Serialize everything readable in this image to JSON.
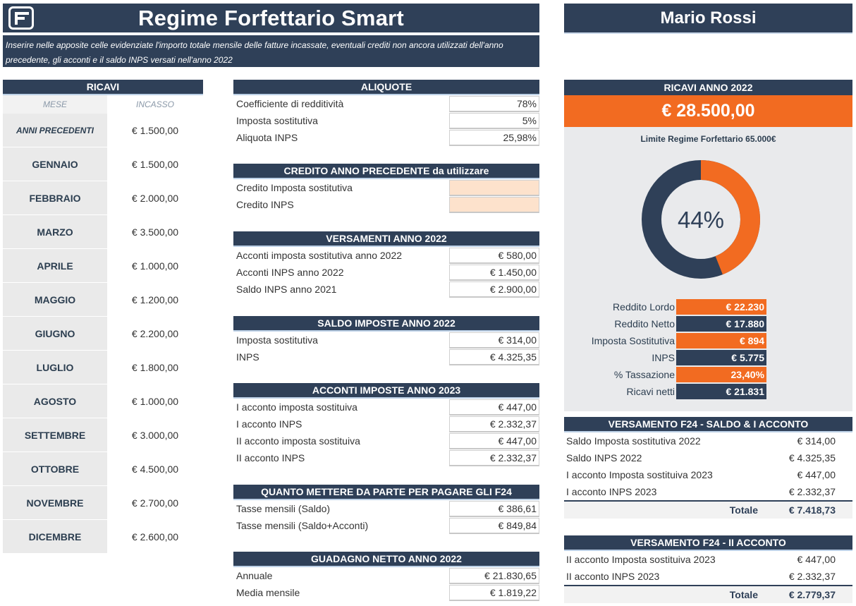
{
  "header": {
    "title": "Regime Forfettario Smart",
    "subtitle": "Inserire nelle apposite celle evidenziate l'importo totale mensile delle fatture incassate, eventuali crediti non ancora utilizzati dell'anno precedente, gli acconti e il saldo INPS versati nell'anno 2022",
    "user_name": "Mario Rossi",
    "logo_icon": "spreadsheet-logo-icon"
  },
  "colors": {
    "navy": "#2f4058",
    "orange": "#f26b21",
    "peach": "#fde2cc",
    "grey_panel": "#e9eaec"
  },
  "ricavi": {
    "title": "RICAVI",
    "col_month": "MESE",
    "col_amount": "INCASSO",
    "rows": [
      {
        "month": "ANNI PRECEDENTI",
        "amount": "€ 1.500,00"
      },
      {
        "month": "GENNAIO",
        "amount": "€ 1.500,00"
      },
      {
        "month": "FEBBRAIO",
        "amount": "€ 2.000,00"
      },
      {
        "month": "MARZO",
        "amount": "€ 3.500,00"
      },
      {
        "month": "APRILE",
        "amount": "€ 1.000,00"
      },
      {
        "month": "MAGGIO",
        "amount": "€ 1.200,00"
      },
      {
        "month": "GIUGNO",
        "amount": "€ 2.200,00"
      },
      {
        "month": "LUGLIO",
        "amount": "€ 1.800,00"
      },
      {
        "month": "AGOSTO",
        "amount": "€ 1.000,00"
      },
      {
        "month": "SETTEMBRE",
        "amount": "€ 3.000,00"
      },
      {
        "month": "OTTOBRE",
        "amount": "€ 4.500,00"
      },
      {
        "month": "NOVEMBRE",
        "amount": "€ 2.700,00"
      },
      {
        "month": "DICEMBRE",
        "amount": "€ 2.600,00"
      }
    ]
  },
  "aliquote": {
    "title": "ALIQUOTE",
    "rows": [
      {
        "label": "Coefficiente di redditività",
        "value": "78%"
      },
      {
        "label": "Imposta sostitutiva",
        "value": "5%"
      },
      {
        "label": "Aliquota INPS",
        "value": "25,98%"
      }
    ]
  },
  "credito": {
    "title": "CREDITO ANNO PRECEDENTE da utilizzare",
    "rows": [
      {
        "label": "Credito Imposta sostitutiva",
        "value": ""
      },
      {
        "label": "Credito INPS",
        "value": ""
      }
    ]
  },
  "versamenti": {
    "title": "VERSAMENTI ANNO 2022",
    "rows": [
      {
        "label": "Acconti imposta sostitutiva anno 2022",
        "value": "€ 580,00"
      },
      {
        "label": "Acconti INPS anno 2022",
        "value": "€ 1.450,00"
      },
      {
        "label": "Saldo INPS anno 2021",
        "value": "€ 2.900,00"
      }
    ]
  },
  "saldo": {
    "title": "SALDO IMPOSTE ANNO 2022",
    "rows": [
      {
        "label": "Imposta sostitutiva",
        "value": "€ 314,00"
      },
      {
        "label": "INPS",
        "value": "€ 4.325,35"
      }
    ]
  },
  "acconti": {
    "title": "ACCONTI IMPOSTE ANNO 2023",
    "rows": [
      {
        "label": "I acconto imposta sostituiva",
        "value": "€ 447,00"
      },
      {
        "label": "I acconto INPS",
        "value": "€ 2.332,37"
      },
      {
        "label": "II acconto imposta sostituiva",
        "value": "€ 447,00"
      },
      {
        "label": "II acconto INPS",
        "value": "€ 2.332,37"
      }
    ]
  },
  "quanto": {
    "title": "QUANTO METTERE DA PARTE PER PAGARE GLI F24",
    "rows": [
      {
        "label": "Tasse mensili (Saldo)",
        "value": "€ 386,61"
      },
      {
        "label": "Tasse mensili (Saldo+Acconti)",
        "value": "€ 849,84"
      }
    ]
  },
  "guadagno": {
    "title": "GUADAGNO NETTO ANNO 2022",
    "rows": [
      {
        "label": "Annuale",
        "value": "€ 21.830,65"
      },
      {
        "label": "Media mensile",
        "value": "€ 1.819,22"
      }
    ]
  },
  "summary": {
    "title": "RICAVI ANNO 2022",
    "total": "€ 28.500,00",
    "limit_label": "Limite Regime Forfettario 65.000€",
    "gauge_percent": 44,
    "gauge_label": "44%",
    "kpis": [
      {
        "label": "Reddito Lordo",
        "value": "€ 22.230",
        "color": "orange"
      },
      {
        "label": "Reddito Netto",
        "value": "€ 17.880",
        "color": "navy"
      },
      {
        "label": "Imposta Sostitutiva",
        "value": "€ 894",
        "color": "orange"
      },
      {
        "label": "INPS",
        "value": "€ 5.775",
        "color": "navy"
      },
      {
        "label": "% Tassazione",
        "value": "23,40%",
        "color": "orange"
      },
      {
        "label": "Ricavi netti",
        "value": "€ 21.831",
        "color": "navy"
      }
    ]
  },
  "f24_saldo": {
    "title": "VERSAMENTO F24 - SALDO & I ACCONTO",
    "rows": [
      {
        "label": "Saldo Imposta sostitutiva 2022",
        "value": "€ 314,00"
      },
      {
        "label": "Saldo INPS 2022",
        "value": "€ 4.325,35"
      },
      {
        "label": "I acconto Imposta sostituiva 2023",
        "value": "€ 447,00"
      },
      {
        "label": "I acconto INPS 2023",
        "value": "€ 2.332,37"
      }
    ],
    "total_label": "Totale",
    "total_value": "€ 7.418,73"
  },
  "f24_acconto": {
    "title": "VERSAMENTO F24 - II ACCONTO",
    "rows": [
      {
        "label": "II acconto Imposta sostituiva 2023",
        "value": "€ 447,00"
      },
      {
        "label": "II acconto INPS 2023",
        "value": "€ 2.332,37"
      }
    ],
    "total_label": "Totale",
    "total_value": "€ 2.779,37"
  }
}
